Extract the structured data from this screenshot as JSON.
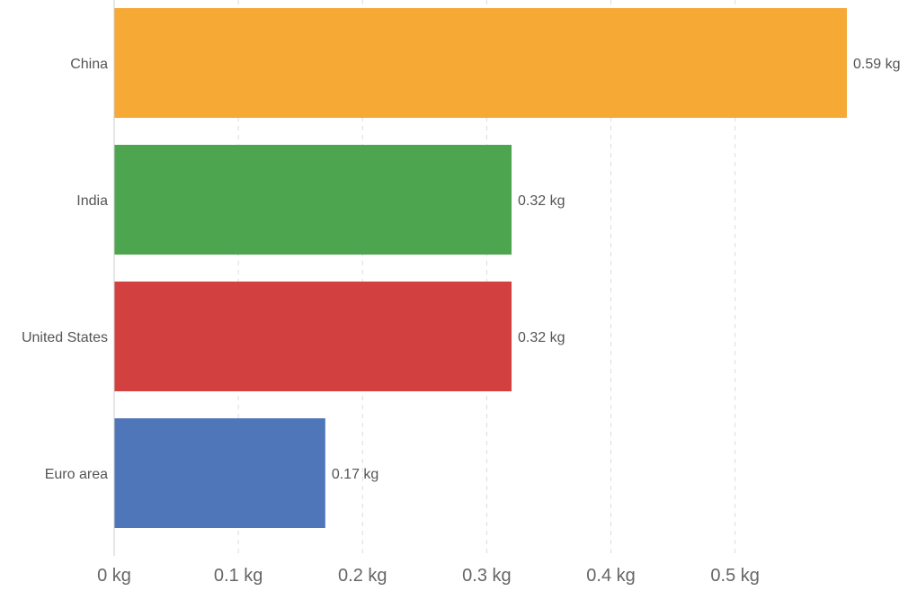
{
  "chart_data": {
    "type": "bar",
    "orientation": "horizontal",
    "categories": [
      "China",
      "India",
      "United States",
      "Euro area"
    ],
    "values": [
      0.59,
      0.32,
      0.32,
      0.17
    ],
    "value_labels": [
      "0.59 kg",
      "0.32 kg",
      "0.32 kg",
      "0.17 kg"
    ],
    "colors": [
      "#f6a935",
      "#4ea54f",
      "#d2413f",
      "#4f76b9"
    ],
    "x_ticks": [
      {
        "value": 0,
        "label": "0 kg"
      },
      {
        "value": 0.1,
        "label": "0.1 kg"
      },
      {
        "value": 0.2,
        "label": "0.2 kg"
      },
      {
        "value": 0.3,
        "label": "0.3 kg"
      },
      {
        "value": 0.4,
        "label": "0.4 kg"
      },
      {
        "value": 0.5,
        "label": "0.5 kg"
      }
    ],
    "xlim": [
      0,
      0.59
    ],
    "grid": true,
    "legend": "none"
  }
}
